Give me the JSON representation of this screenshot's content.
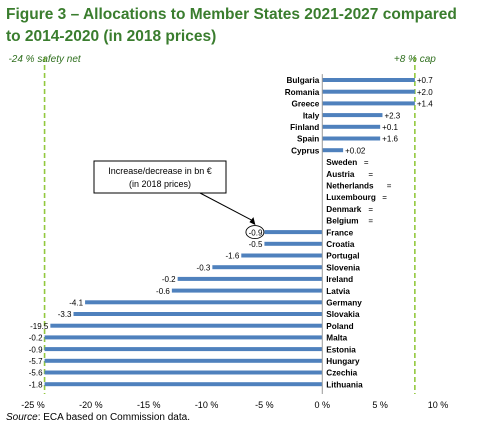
{
  "figure": {
    "title": "Figure 3 – Allocations to Member States 2021-2027 compared to 2014-2020 (in 2018 prices)",
    "source_label": "Source",
    "source_text": ": ECA based on Commission data."
  },
  "chart_data": {
    "type": "bar",
    "orientation": "horizontal",
    "title": "Figure 3 – Allocations to Member States 2021-2027 compared to 2014-2020 (in 2018 prices)",
    "xlabel": "",
    "ylabel": "",
    "xlim": [
      -25,
      10
    ],
    "x_ticks": [
      -25,
      -20,
      -15,
      -10,
      -5,
      0,
      5,
      10
    ],
    "x_tick_labels": [
      "-25 %",
      "-20 %",
      "-15 %",
      "-10 %",
      "-5 %",
      "0 %",
      "5 %",
      "10 %"
    ],
    "grid": false,
    "bar_color": "#4f81bd",
    "reference_line_color": "#92c83e",
    "reference_lines": [
      {
        "value": -24,
        "label": "-24 % safety net"
      },
      {
        "value": 8,
        "label": "+8 % cap"
      }
    ],
    "annotation": {
      "title": "Increase/decrease in bn €",
      "subtitle": "(in 2018 prices)",
      "example_label": "-0.9"
    },
    "categories": [
      "Bulgaria",
      "Romania",
      "Greece",
      "Italy",
      "Finland",
      "Spain",
      "Cyprus",
      "Sweden",
      "Austria",
      "Netherlands",
      "Luxembourg",
      "Denmark",
      "Belgium",
      "France",
      "Croatia",
      "Portugal",
      "Slovenia",
      "Ireland",
      "Latvia",
      "Germany",
      "Slovakia",
      "Poland",
      "Malta",
      "Estonia",
      "Hungary",
      "Czechia",
      "Lithuania"
    ],
    "values": [
      8,
      8,
      8,
      5.2,
      5,
      5,
      1.8,
      0,
      0,
      0,
      0,
      0,
      0,
      -5,
      -5,
      -7,
      -9.5,
      -12.5,
      -13,
      -20.5,
      -21.5,
      -23.5,
      -24,
      -24,
      -24,
      -24,
      -24
    ],
    "data_labels": [
      "+0.7",
      "+2.0",
      "+1.4",
      "+2.3",
      "+0.1",
      "+1.6",
      "+0.02",
      "=",
      "=",
      "=",
      "=",
      "=",
      "=",
      "-0.9",
      "-0.5",
      "-1.6",
      "-0.3",
      "-0.2",
      "-0.6",
      "-4.1",
      "-3.3",
      "-19.5",
      "-0.2",
      "-0.9",
      "-5.7",
      "-5.6",
      "-1.8"
    ]
  }
}
